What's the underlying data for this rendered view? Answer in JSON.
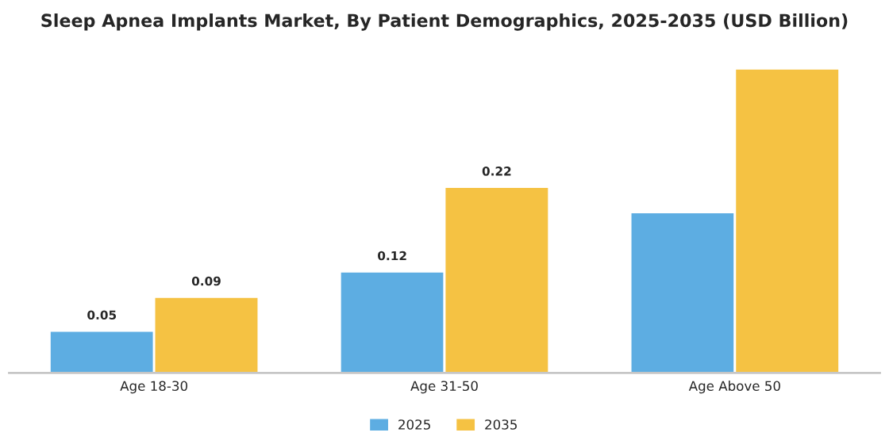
{
  "chart_data": {
    "type": "bar",
    "title": "Sleep Apnea Implants Market, By Patient Demographics, 2025-2035 (USD Billion)",
    "categories": [
      "Age 18-30",
      "Age 31-50",
      "Age Above 50"
    ],
    "series": [
      {
        "name": "2025",
        "color": "#5dade2",
        "values": [
          0.05,
          0.12,
          0.19
        ],
        "value_labels": [
          "0.05",
          "0.12",
          null
        ]
      },
      {
        "name": "2035",
        "color": "#f5c243",
        "values": [
          0.09,
          0.22,
          0.36
        ],
        "value_labels": [
          "0.09",
          "0.22",
          null
        ]
      }
    ],
    "legend": "bottom",
    "grid": false,
    "tick_labels": "x"
  }
}
